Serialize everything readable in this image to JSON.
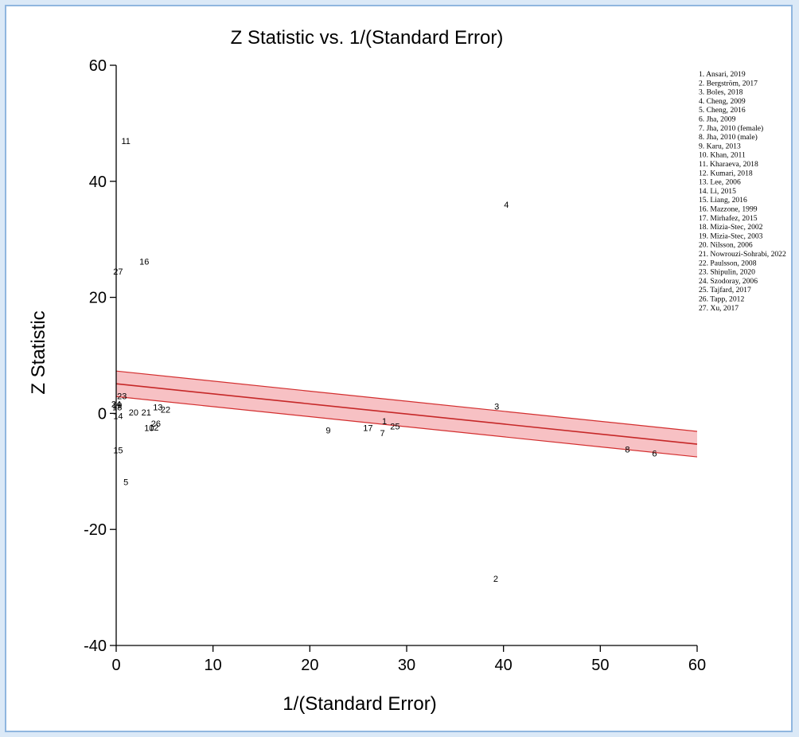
{
  "colors": {
    "band_fill": "#f7c1c4",
    "band_edge": "#d32f2f",
    "regression_line": "#c62828",
    "axis": "#000000",
    "frame_border": "#8fb6df",
    "background": "#dbe9f7"
  },
  "chart_data": {
    "type": "scatter",
    "title": "Z Statistic vs. 1/(Standard Error)",
    "xlabel": "1/(Standard Error)",
    "ylabel": "Z Statistic",
    "xlim": [
      0,
      60
    ],
    "ylim": [
      -40,
      60
    ],
    "x_ticks": [
      "0",
      "10",
      "20",
      "30",
      "40",
      "50",
      "60"
    ],
    "y_ticks": [
      "60",
      "40",
      "20",
      "0",
      "-20",
      "-40"
    ],
    "grid": false,
    "legend_position": "top-right",
    "regression": {
      "x": [
        0,
        60
      ],
      "y": [
        5.1,
        -5.3
      ]
    },
    "confidence_band": {
      "x": [
        0,
        60
      ],
      "upper": [
        7.3,
        -3.1
      ],
      "lower": [
        2.9,
        -7.5
      ]
    },
    "points": [
      {
        "label": "1",
        "x": 27.7,
        "y": -1.3
      },
      {
        "label": "2",
        "x": 39.2,
        "y": -28.5
      },
      {
        "label": "3",
        "x": 39.3,
        "y": 1.2
      },
      {
        "label": "4",
        "x": 40.3,
        "y": 36.0
      },
      {
        "label": "5",
        "x": 1.0,
        "y": -11.8
      },
      {
        "label": "6",
        "x": 55.6,
        "y": -6.9
      },
      {
        "label": "7",
        "x": 27.5,
        "y": -3.4
      },
      {
        "label": "8",
        "x": 52.8,
        "y": -6.2
      },
      {
        "label": "9",
        "x": 21.9,
        "y": -2.9
      },
      {
        "label": "10",
        "x": 3.4,
        "y": -2.5
      },
      {
        "label": "11",
        "x": 1.0,
        "y": 47.0
      },
      {
        "label": "12",
        "x": 3.9,
        "y": -2.4
      },
      {
        "label": "13",
        "x": 4.3,
        "y": 1.1
      },
      {
        "label": "14",
        "x": 0.2,
        "y": -0.4
      },
      {
        "label": "15",
        "x": 0.2,
        "y": -6.3
      },
      {
        "label": "16",
        "x": 2.9,
        "y": 26.2
      },
      {
        "label": "17",
        "x": 26.0,
        "y": -2.5
      },
      {
        "label": "18",
        "x": 0.1,
        "y": 1.1
      },
      {
        "label": "19",
        "x": 0.1,
        "y": 1.4
      },
      {
        "label": "20",
        "x": 1.8,
        "y": 0.2
      },
      {
        "label": "21",
        "x": 3.1,
        "y": 0.2
      },
      {
        "label": "22",
        "x": 5.1,
        "y": 0.7
      },
      {
        "label": "23",
        "x": 0.6,
        "y": 3.0
      },
      {
        "label": "24",
        "x": 0.0,
        "y": 1.6
      },
      {
        "label": "25",
        "x": 28.8,
        "y": -2.2
      },
      {
        "label": "26",
        "x": 4.1,
        "y": -1.7
      },
      {
        "label": "27",
        "x": 0.2,
        "y": 24.5
      }
    ],
    "legend": [
      "1. Ansari, 2019",
      "2. Bergström, 2017",
      "3. Boles, 2018",
      "4. Cheng, 2009",
      "5. Cheng, 2016",
      "6. Jha, 2009",
      "7. Jha, 2010 (female)",
      "8. Jha, 2010 (male)",
      "9. Karu, 2013",
      "10. Khan, 2011",
      "11. Kharaeva, 2018",
      "12. Kumari, 2018",
      "13. Lee, 2006",
      "14. Li, 2015",
      "15. Liang, 2016",
      "16. Mazzone, 1999",
      "17. Mirhafez, 2015",
      "18. Mizia-Stec, 2002",
      "19. Mizia-Stec, 2003",
      "20. Nilsson, 2006",
      "21. Nowrouzi-Sohrabi, 2022",
      "22. Paulsson, 2008",
      "23. Shipulin, 2020",
      "24. Szodoray, 2006",
      "25. Tajfard, 2017",
      "26. Tapp, 2012",
      "27. Xu, 2017"
    ]
  }
}
